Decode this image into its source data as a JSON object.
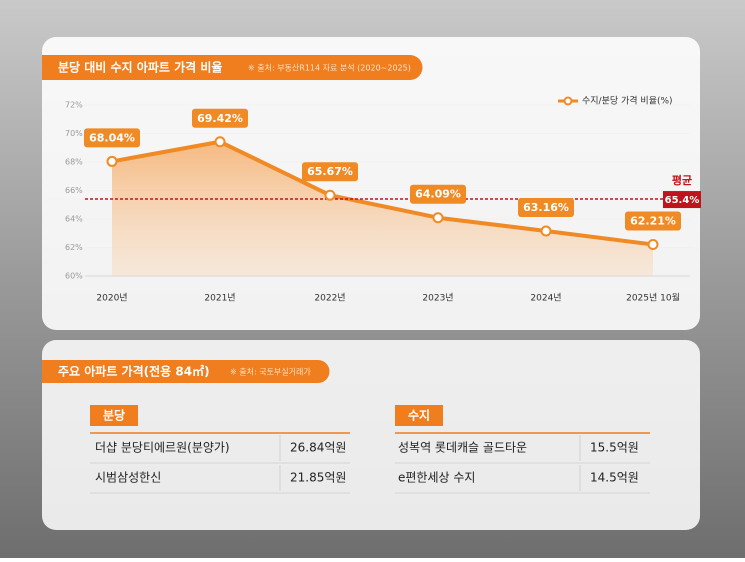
{
  "chart_data": {
    "type": "line",
    "title": "분당 대비 수지 아파트 가격 비율",
    "source": "※ 출처: 부동산R114 자료 분석 (2020~2025)",
    "categories": [
      "2020년",
      "2021년",
      "2022년",
      "2023년",
      "2024년",
      "2025년 10월"
    ],
    "series": [
      {
        "name": "수지/분당 가격 비율(%)",
        "color": "#f08a24",
        "values": [
          68.04,
          69.42,
          65.67,
          64.09,
          63.16,
          62.21
        ],
        "value_labels": [
          "68.04%",
          "69.42%",
          "65.67%",
          "64.09%",
          "63.16%",
          "62.21%"
        ]
      }
    ],
    "average": {
      "label": "평균",
      "value": 65.4,
      "value_label": "65.4%",
      "color": "#c0141c"
    },
    "ylim": [
      60,
      72
    ],
    "yticks": [
      {
        "value": 60,
        "label": "60%"
      },
      {
        "value": 62,
        "label": "62%"
      },
      {
        "value": 64,
        "label": "64%"
      },
      {
        "value": 66,
        "label": "66%"
      },
      {
        "value": 68,
        "label": "68%"
      },
      {
        "value": 70,
        "label": "70%"
      },
      {
        "value": 72,
        "label": "72%"
      }
    ]
  },
  "table": {
    "title": "주요 아파트 가격(전용 84㎡)",
    "source": "※ 출처: 국토부실거래가",
    "groups": [
      {
        "name": "분당",
        "rows": [
          [
            "더샵 분당티에르원(분양가)",
            "26.84억원"
          ],
          [
            "시범삼성한신",
            "21.85억원"
          ]
        ]
      },
      {
        "name": "수지",
        "rows": [
          [
            "성복역 롯데캐슬 골드타운",
            "15.5억원"
          ],
          [
            "e편한세상 수지",
            "14.5억원"
          ]
        ]
      }
    ]
  }
}
